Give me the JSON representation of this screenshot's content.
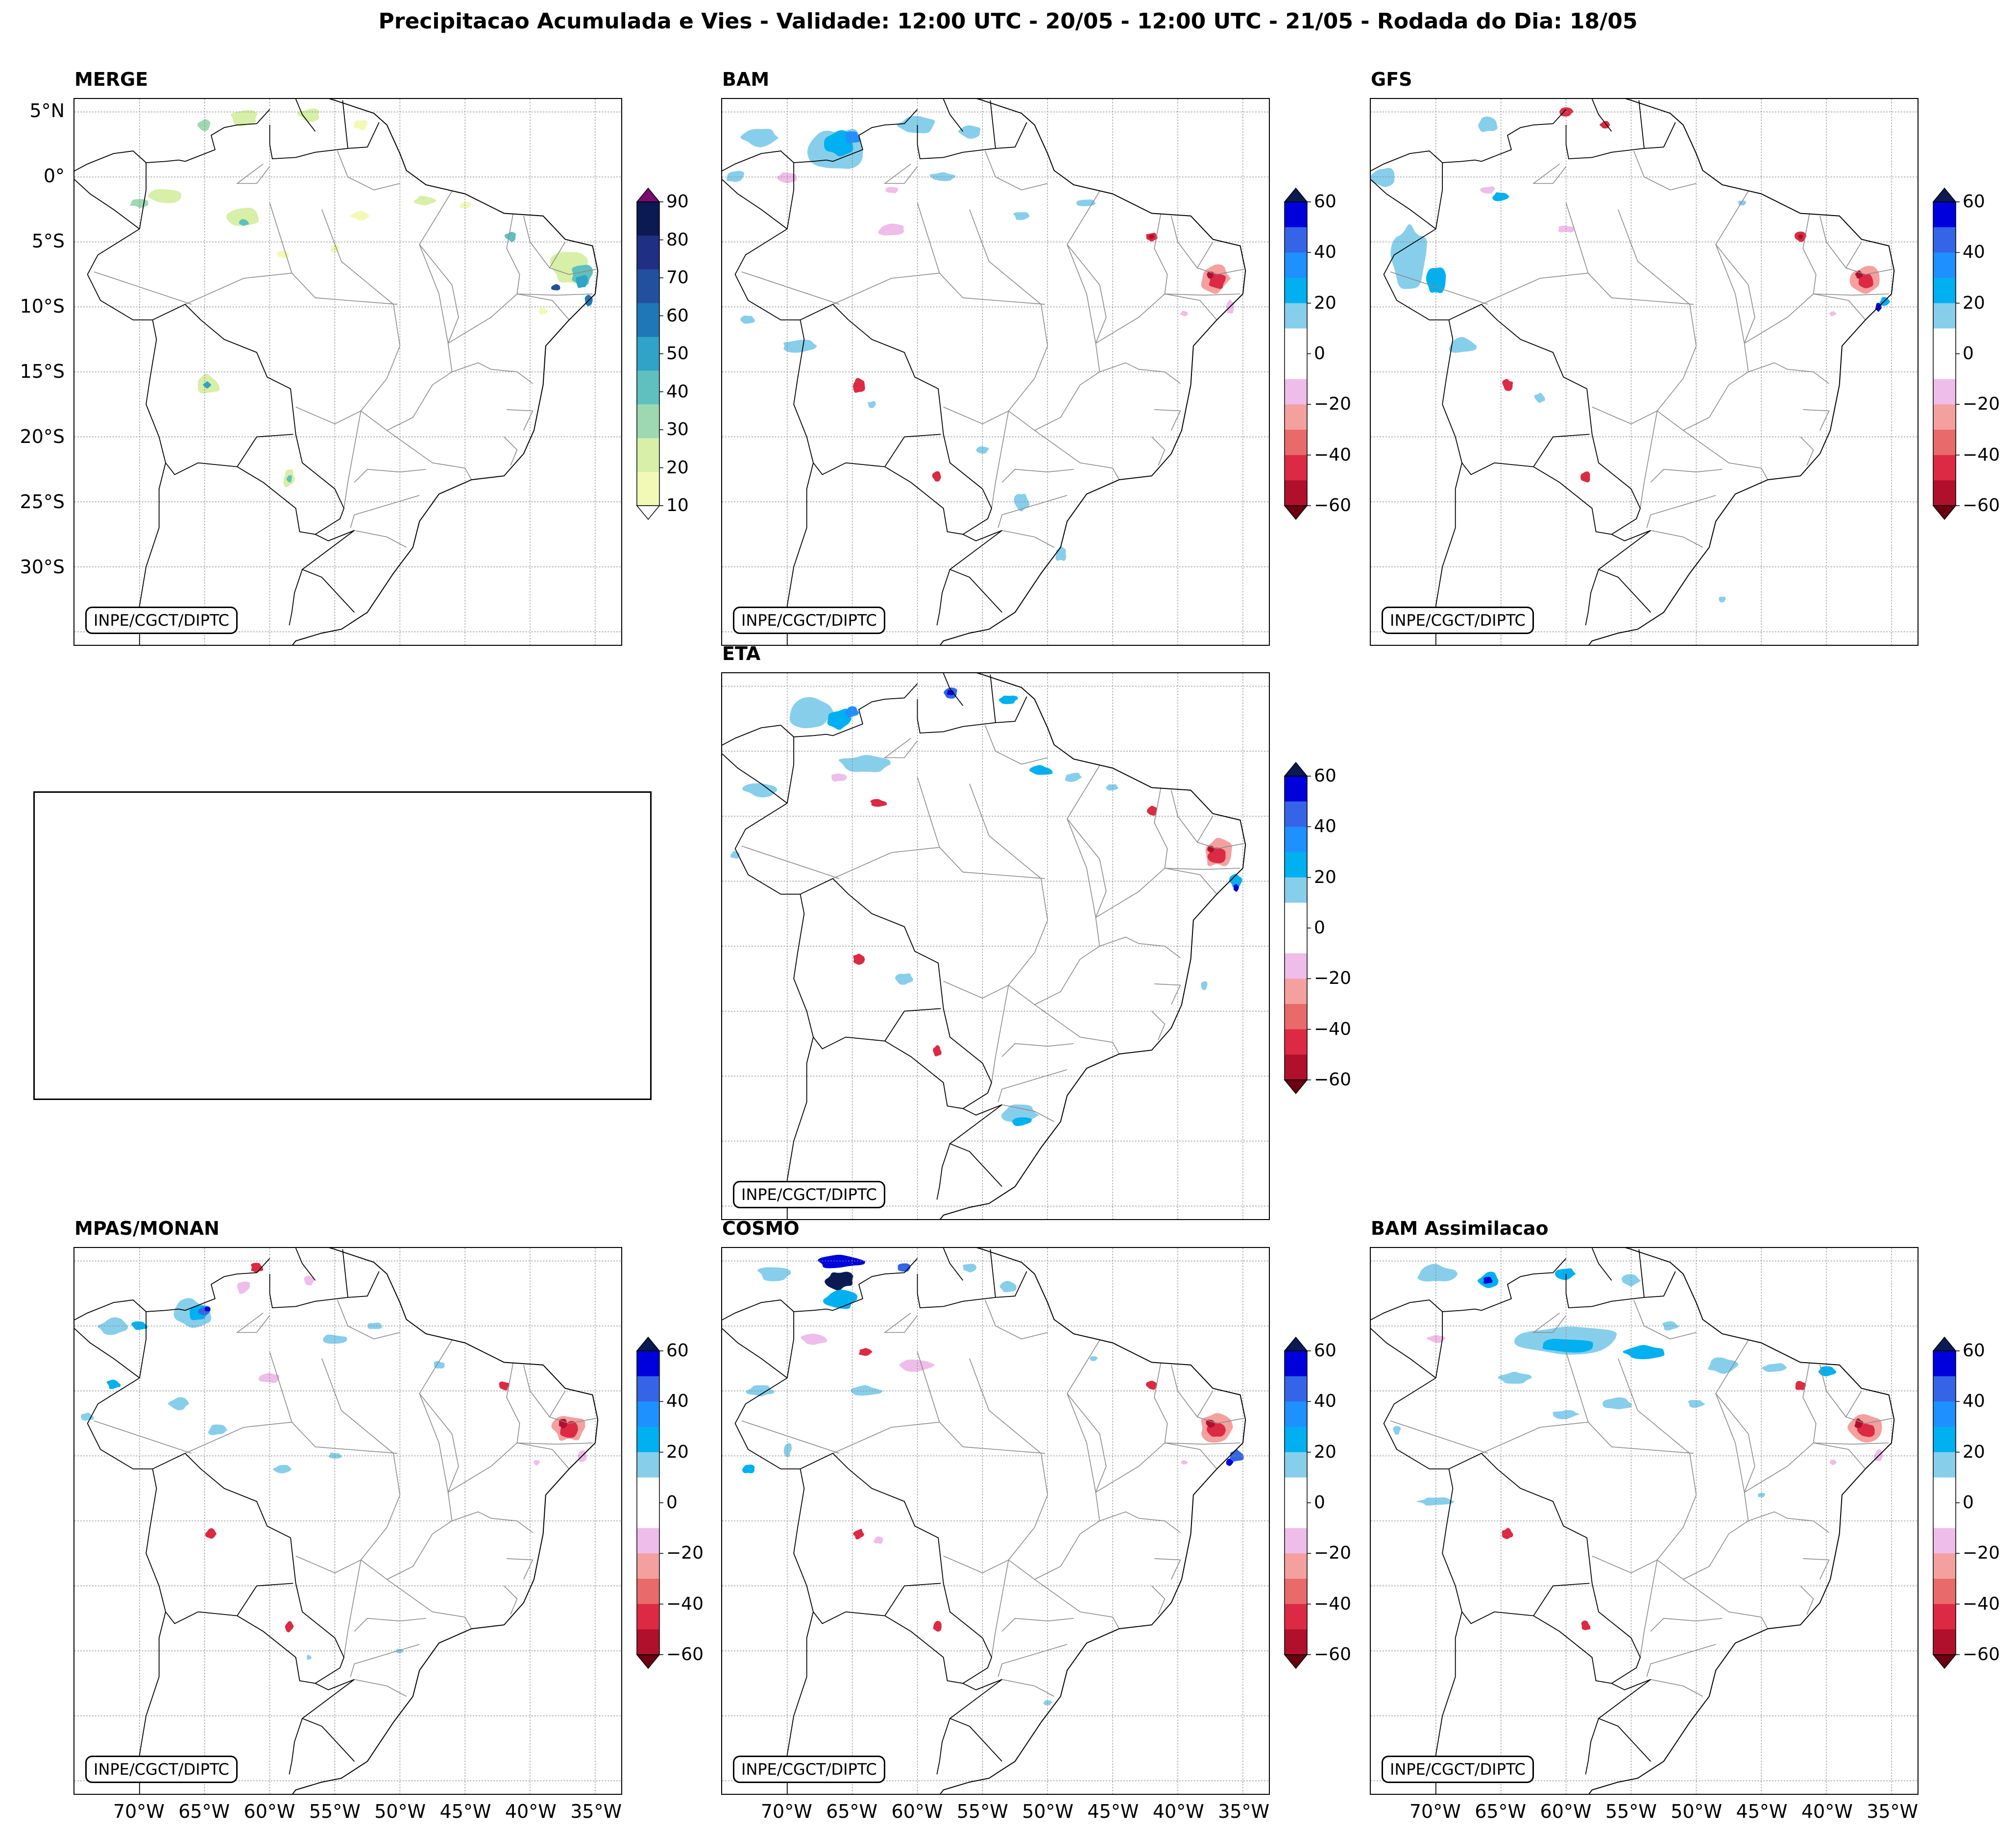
{
  "title": "Precipitacao Acumulada e Vies - Validade: 12:00 UTC - 20/05 - 12:00 UTC - 21/05 - Rodada do Dia: 18/05",
  "credit": "INPE/CGCT/DIPTC",
  "panels": {
    "merge": {
      "title": "MERGE"
    },
    "bam": {
      "title": "BAM"
    },
    "gfs": {
      "title": "GFS"
    },
    "eta": {
      "title": "ETA"
    },
    "mpas": {
      "title": "MPAS/MONAN"
    },
    "cosmo": {
      "title": "COSMO"
    },
    "bamassim": {
      "title": "BAM Assimilacao"
    }
  },
  "lat_labels": [
    "5°N",
    "0°",
    "5°S",
    "10°S",
    "15°S",
    "20°S",
    "25°S",
    "30°S"
  ],
  "lon_labels": [
    "70°W",
    "65°W",
    "60°W",
    "55°W",
    "50°W",
    "45°W",
    "40°W",
    "35°W"
  ],
  "precip_colorbar": {
    "ticks": [
      "10",
      "20",
      "30",
      "40",
      "50",
      "60",
      "70",
      "80",
      "90"
    ],
    "colors": [
      "#f2f9b7",
      "#d7efa6",
      "#9ed8b2",
      "#5fc0bf",
      "#30a3c6",
      "#1f78b5",
      "#22509f",
      "#1f2f83",
      "#0b1a52"
    ],
    "under": "#ffffff",
    "over": "#7a0b6f"
  },
  "bias_colorbar": {
    "ticks": [
      "60",
      "40",
      "20",
      "0",
      "−20",
      "−40",
      "−60"
    ],
    "colors": [
      "#0000dd",
      "#3565e6",
      "#1e90ff",
      "#00b0f0",
      "#87ceeb",
      "#ffffff",
      "#ffffff",
      "#efbde9",
      "#f4a09f",
      "#e86a6a",
      "#dc2a44",
      "#b0102c"
    ],
    "over": "#0b1a52",
    "under": "#6b0011"
  }
}
